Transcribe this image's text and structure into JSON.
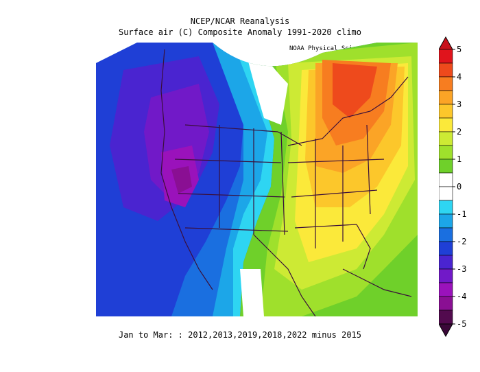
{
  "title": {
    "line1": "NCEP/NCAR Reanalysis",
    "line2": "Surface air (C) Composite Anomaly 1991-2020 climo"
  },
  "credit": "NOAA Physical Sciences Laboratory",
  "footer": "Jan to Mar: : 2012,2013,2019,2018,2022 minus 2015",
  "colorbar": {
    "labels": [
      "5",
      "4",
      "3",
      "2",
      "1",
      "0",
      "-1",
      "-2",
      "-3",
      "-4",
      "-5"
    ],
    "bins": [
      {
        "range": "4.5 to 5",
        "color": "#e0141c"
      },
      {
        "range": "4 to 4.5",
        "color": "#ee4a1c"
      },
      {
        "range": "3.5 to 4",
        "color": "#f77d20"
      },
      {
        "range": "3 to 3.5",
        "color": "#fba426"
      },
      {
        "range": "2.5 to 3",
        "color": "#fcc72b"
      },
      {
        "range": "2 to 2.5",
        "color": "#fbe93a"
      },
      {
        "range": "1.5 to 2",
        "color": "#cdea34"
      },
      {
        "range": "1 to 1.5",
        "color": "#9fe02c"
      },
      {
        "range": "0.5 to 1",
        "color": "#6fd02a"
      },
      {
        "range": "0 to 0.5",
        "color": "#ffffff"
      },
      {
        "range": "-0.5 to 0",
        "color": "#ffffff"
      },
      {
        "range": "-1 to -0.5",
        "color": "#2ed5f2"
      },
      {
        "range": "-1.5 to -1",
        "color": "#1ca6e8"
      },
      {
        "range": "-2 to -1.5",
        "color": "#1a6fe0"
      },
      {
        "range": "-2.5 to -2",
        "color": "#1f3fd6"
      },
      {
        "range": "-3 to -2.5",
        "color": "#4a24d0"
      },
      {
        "range": "-3.5 to -3",
        "color": "#7119c8"
      },
      {
        "range": "-4 to -3.5",
        "color": "#9a12bb"
      },
      {
        "range": "-4.5 to -4",
        "color": "#8a0f93"
      },
      {
        "range": "-5 to -4.5",
        "color": "#520a4e"
      }
    ],
    "arrow_top_color": "#c8101a",
    "arrow_bottom_color": "#3a0838"
  },
  "map": {
    "region": "North America",
    "boundary_color": "#3a0f3a"
  }
}
